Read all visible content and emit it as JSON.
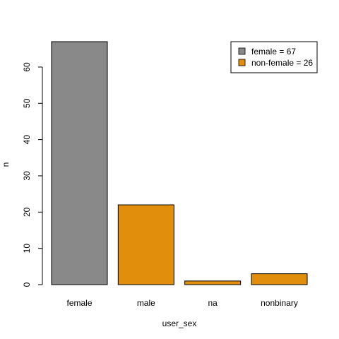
{
  "chart_data": {
    "type": "bar",
    "title": "",
    "xlabel": "user_sex",
    "ylabel": "n",
    "categories": [
      "female",
      "male",
      "na",
      "nonbinary"
    ],
    "values": [
      67,
      22,
      1,
      3
    ],
    "groups": [
      "female",
      "non-female",
      "non-female",
      "non-female"
    ],
    "ylim": [
      0,
      67
    ],
    "yticks": [
      0,
      10,
      20,
      30,
      40,
      50,
      60
    ],
    "grid": false,
    "legend": {
      "position": "top-right",
      "entries": [
        {
          "label": "female = 67",
          "color": "#898989"
        },
        {
          "label": "non-female = 26",
          "color": "#E08E0B"
        }
      ]
    },
    "colors": {
      "female": "#898989",
      "non-female": "#E08E0B",
      "bar_border": "#000000"
    }
  }
}
